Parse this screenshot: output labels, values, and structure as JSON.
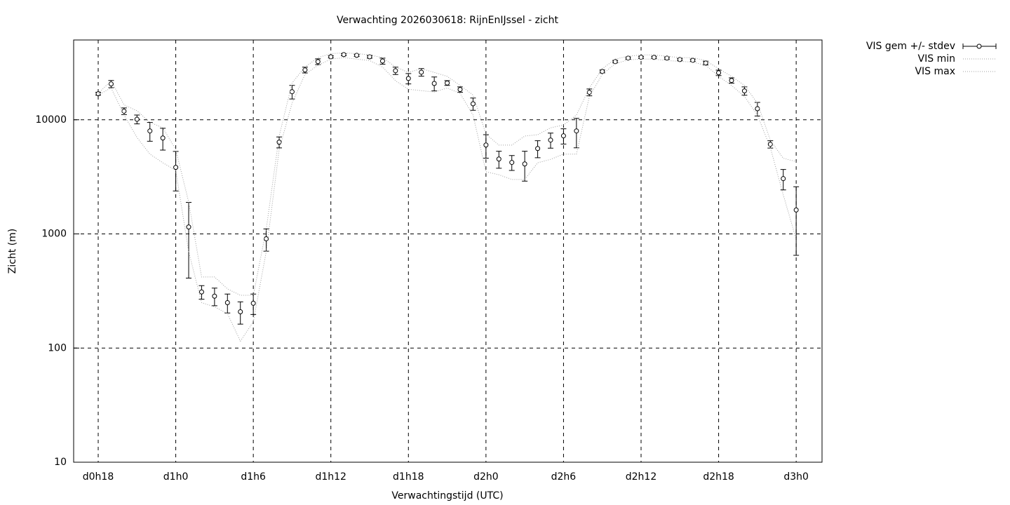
{
  "chart_data": {
    "type": "errorbar",
    "title": "Verwachting 2026030618: RijnEnIJssel - zicht",
    "x_label": "Verwachtingstijd (UTC)",
    "y_label": "Zicht (m)",
    "log_y": true,
    "grid": true,
    "legend": "outside-top-right",
    "xlim": [
      16.1,
      74
    ],
    "ylim": [
      10,
      50000
    ],
    "xticks": [
      {
        "value": 18,
        "label": "d0h18"
      },
      {
        "value": 24,
        "label": "d1h0"
      },
      {
        "value": 30,
        "label": "d1h6"
      },
      {
        "value": 36,
        "label": "d1h12"
      },
      {
        "value": 42,
        "label": "d1h18"
      },
      {
        "value": 48,
        "label": "d2h0"
      },
      {
        "value": 54,
        "label": "d2h6"
      },
      {
        "value": 60,
        "label": "d2h12"
      },
      {
        "value": 66,
        "label": "d2h18"
      },
      {
        "value": 72,
        "label": "d3h0"
      }
    ],
    "yticks": [
      10,
      100,
      1000,
      10000
    ],
    "x": [
      18,
      19,
      20,
      21,
      22,
      23,
      24,
      25,
      26,
      27,
      28,
      29,
      30,
      31,
      32,
      33,
      34,
      35,
      36,
      37,
      38,
      39,
      40,
      41,
      42,
      43,
      44,
      45,
      46,
      47,
      48,
      49,
      50,
      51,
      52,
      53,
      54,
      55,
      56,
      57,
      58,
      59,
      60,
      61,
      62,
      63,
      64,
      65,
      66,
      67,
      68,
      69,
      70,
      71,
      72
    ],
    "series": [
      {
        "name": "VIS gem +/- stdev",
        "color": "#000000",
        "values": [
          16900,
          20600,
          11900,
          10100,
          7980,
          6920,
          3830,
          1150,
          310,
          285,
          250,
          208,
          247,
          906,
          6370,
          17600,
          27300,
          32300,
          35600,
          37200,
          36700,
          35600,
          32700,
          26900,
          23000,
          26100,
          20800,
          21000,
          18400,
          13800,
          6010,
          4530,
          4230,
          4100,
          5600,
          6640,
          7230,
          7980,
          17400,
          26500,
          32300,
          34700,
          35200,
          35200,
          34700,
          33700,
          33200,
          31400,
          25800,
          22100,
          17900,
          12500,
          6100,
          3050,
          1620
        ],
        "errors": [
          500,
          1500,
          800,
          900,
          1500,
          1500,
          1450,
          740,
          42,
          50,
          47,
          46,
          50,
          200,
          700,
          2400,
          1600,
          1900,
          800,
          800,
          800,
          1000,
          2000,
          2000,
          2400,
          2000,
          2900,
          1000,
          1000,
          1700,
          1400,
          770,
          630,
          1200,
          950,
          1000,
          1100,
          2300,
          1200,
          800,
          800,
          800,
          800,
          800,
          800,
          800,
          800,
          1200,
          1400,
          1200,
          1500,
          1700,
          450,
          620,
          970
        ]
      },
      {
        "name": "VIS min",
        "color": "#a0a0a0",
        "values": [
          16500,
          19000,
          11000,
          7000,
          5000,
          4200,
          3600,
          700,
          250,
          230,
          200,
          115,
          170,
          700,
          5500,
          14000,
          25000,
          30000,
          34000,
          35000,
          34000,
          33000,
          29000,
          22000,
          18500,
          18000,
          17500,
          19000,
          17000,
          11000,
          3500,
          3300,
          3000,
          3000,
          4200,
          4500,
          5000,
          5000,
          16000,
          25000,
          31000,
          33500,
          34000,
          34000,
          33000,
          32500,
          32000,
          30000,
          24000,
          20000,
          16000,
          11000,
          5700,
          2200,
          900
        ]
      },
      {
        "name": "VIS max",
        "color": "#a0a0a0",
        "values": [
          17000,
          22000,
          13500,
          12000,
          9500,
          8500,
          5500,
          1900,
          420,
          420,
          330,
          290,
          290,
          1100,
          7200,
          21000,
          29000,
          35000,
          38000,
          38500,
          38000,
          37000,
          35000,
          29000,
          26000,
          28000,
          26000,
          24000,
          20000,
          16500,
          7500,
          6000,
          6000,
          7200,
          7400,
          8500,
          9000,
          11000,
          19000,
          28000,
          34000,
          36000,
          37000,
          37000,
          36000,
          35000,
          35000,
          33000,
          28000,
          24000,
          20000,
          14000,
          6600,
          4600,
          4300
        ]
      }
    ]
  }
}
